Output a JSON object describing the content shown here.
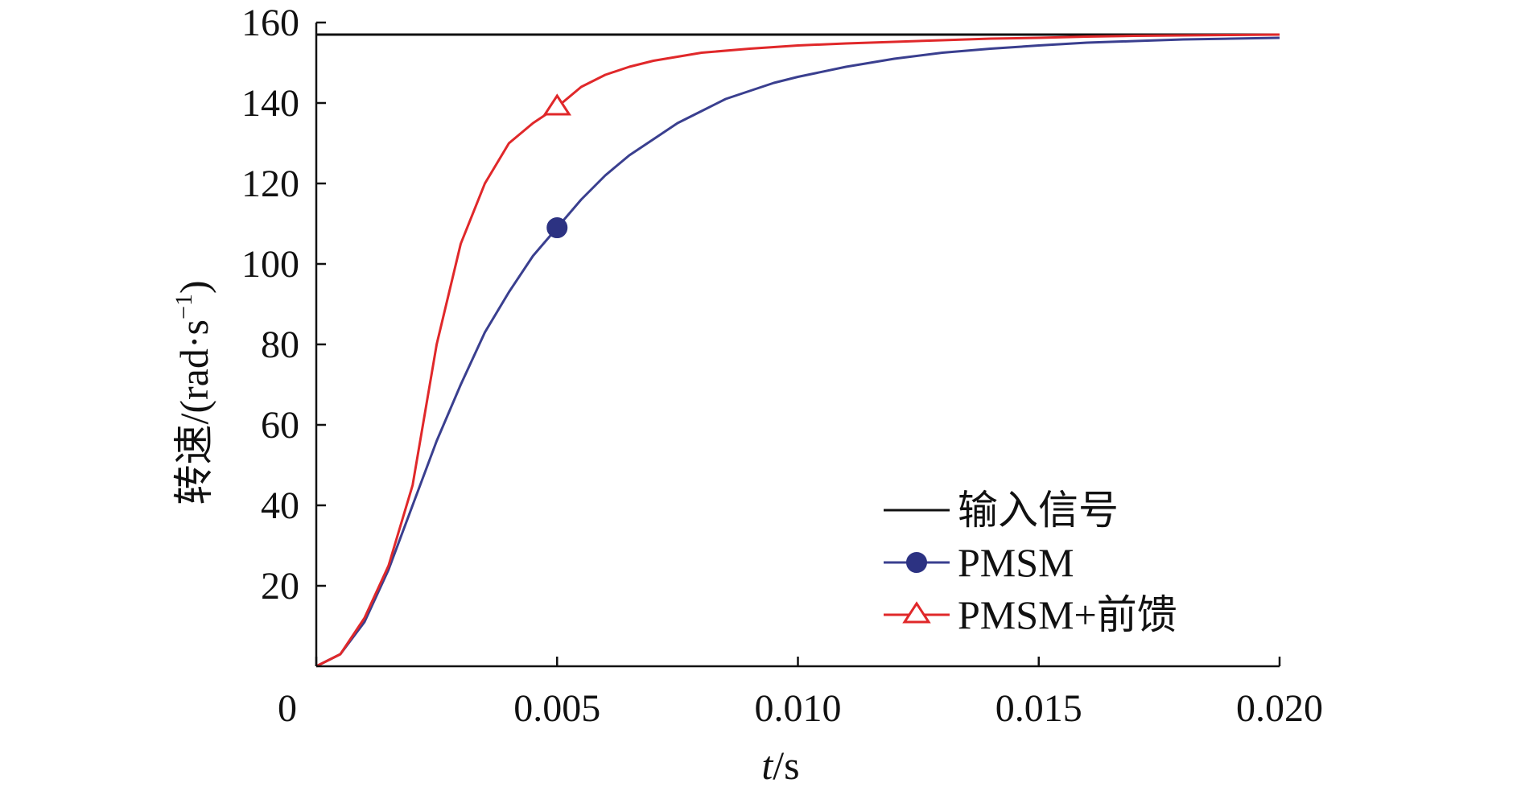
{
  "chart_data": {
    "type": "line",
    "title": "",
    "xlabel_italic": "t",
    "xlabel_rest": "/s",
    "ylabel_main": "转速/(rad·s",
    "ylabel_sup": "−1",
    "ylabel_close": ")",
    "xlim": [
      0,
      0.02
    ],
    "ylim": [
      0,
      160
    ],
    "x_ticks": [
      0,
      0.005,
      0.01,
      0.015,
      0.02
    ],
    "x_tick_labels": [
      "0",
      "0.005",
      "0.010",
      "0.015",
      "0.020"
    ],
    "y_ticks": [
      20,
      40,
      60,
      80,
      100,
      120,
      140,
      160
    ],
    "y_tick_labels": [
      "20",
      "40",
      "60",
      "80",
      "100",
      "120",
      "140",
      "160"
    ],
    "grid": false,
    "legend_position": "bottom-right",
    "series": [
      {
        "name": "输入信号",
        "color": "#111111",
        "marker": "none",
        "x": [
          0,
          0.02
        ],
        "y": [
          157,
          157
        ]
      },
      {
        "name": "PMSM",
        "color": "#3a3f8f",
        "marker": "circle",
        "marker_at": [
          0.005,
          109
        ],
        "x": [
          0,
          0.0005,
          0.001,
          0.0015,
          0.002,
          0.0025,
          0.003,
          0.0035,
          0.004,
          0.0045,
          0.005,
          0.0055,
          0.006,
          0.0065,
          0.007,
          0.0075,
          0.008,
          0.0085,
          0.009,
          0.0095,
          0.01,
          0.011,
          0.012,
          0.013,
          0.014,
          0.015,
          0.016,
          0.017,
          0.018,
          0.019,
          0.02
        ],
        "y": [
          0,
          3,
          11,
          24,
          40,
          56,
          70,
          83,
          93,
          102,
          109,
          116,
          122,
          127,
          131,
          135,
          138,
          141,
          143,
          145,
          146.5,
          149,
          151,
          152.5,
          153.5,
          154.3,
          155,
          155.4,
          155.8,
          156,
          156.2
        ]
      },
      {
        "name": "PMSM+前馈",
        "color": "#e0282a",
        "marker": "triangle",
        "marker_at": [
          0.005,
          139
        ],
        "x": [
          0,
          0.0005,
          0.001,
          0.0015,
          0.002,
          0.0025,
          0.003,
          0.0035,
          0.004,
          0.0045,
          0.005,
          0.0055,
          0.006,
          0.0065,
          0.007,
          0.008,
          0.009,
          0.01,
          0.011,
          0.012,
          0.013,
          0.014,
          0.015,
          0.016,
          0.017,
          0.018,
          0.019,
          0.02
        ],
        "y": [
          0,
          3,
          12,
          25,
          45,
          80,
          105,
          120,
          130,
          135,
          139,
          144,
          147,
          149,
          150.5,
          152.5,
          153.5,
          154.3,
          154.8,
          155.2,
          155.6,
          156,
          156.2,
          156.5,
          156.7,
          156.8,
          156.9,
          157
        ]
      }
    ]
  }
}
